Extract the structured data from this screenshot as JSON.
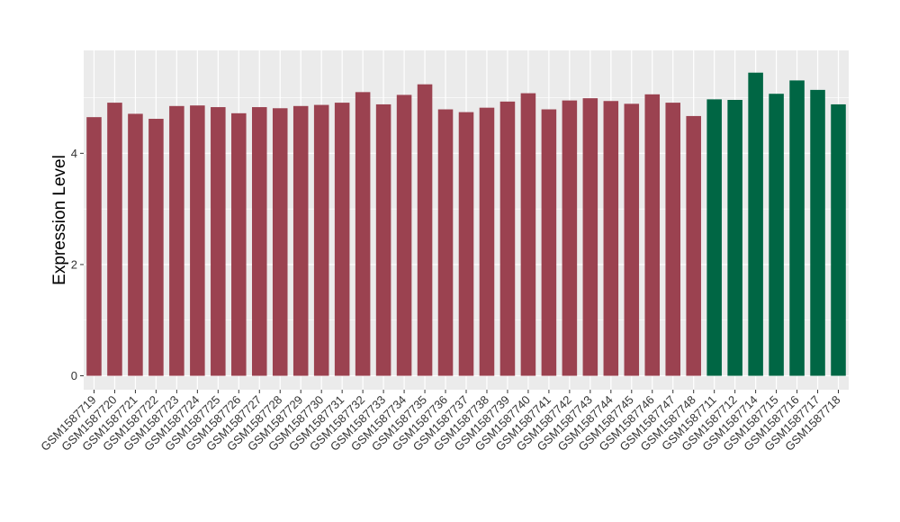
{
  "chart_data": {
    "type": "bar",
    "title": "",
    "xlabel": "",
    "ylabel": "Expression Level",
    "ylim": [
      -0.25,
      5.85
    ],
    "yticks": [
      0,
      2,
      4
    ],
    "grid": true,
    "legend": "none",
    "background": "#EBEBEB",
    "categories": [
      "GSM1587719",
      "GSM1587720",
      "GSM1587721",
      "GSM1587722",
      "GSM1587723",
      "GSM1587724",
      "GSM1587725",
      "GSM1587726",
      "GSM1587727",
      "GSM1587728",
      "GSM1587729",
      "GSM1587730",
      "GSM1587731",
      "GSM1587732",
      "GSM1587733",
      "GSM1587734",
      "GSM1587735",
      "GSM1587736",
      "GSM1587737",
      "GSM1587738",
      "GSM1587739",
      "GSM1587740",
      "GSM1587741",
      "GSM1587742",
      "GSM1587743",
      "GSM1587744",
      "GSM1587745",
      "GSM1587746",
      "GSM1587747",
      "GSM1587748",
      "GSM1587711",
      "GSM1587712",
      "GSM1587714",
      "GSM1587715",
      "GSM1587716",
      "GSM1587717",
      "GSM1587718"
    ],
    "values": [
      4.65,
      4.91,
      4.71,
      4.62,
      4.85,
      4.86,
      4.83,
      4.72,
      4.83,
      4.81,
      4.85,
      4.87,
      4.91,
      5.1,
      4.88,
      5.05,
      5.24,
      4.79,
      4.74,
      4.82,
      4.93,
      5.08,
      4.79,
      4.95,
      4.99,
      4.94,
      4.89,
      5.06,
      4.91,
      4.67,
      4.97,
      4.96,
      5.45,
      5.07,
      5.31,
      5.14,
      4.88
    ],
    "groups": [
      "a",
      "a",
      "a",
      "a",
      "a",
      "a",
      "a",
      "a",
      "a",
      "a",
      "a",
      "a",
      "a",
      "a",
      "a",
      "a",
      "a",
      "a",
      "a",
      "a",
      "a",
      "a",
      "a",
      "a",
      "a",
      "a",
      "a",
      "a",
      "a",
      "a",
      "b",
      "b",
      "b",
      "b",
      "b",
      "b",
      "b"
    ],
    "colors": {
      "a": "#9B4250",
      "b": "#006644"
    }
  }
}
